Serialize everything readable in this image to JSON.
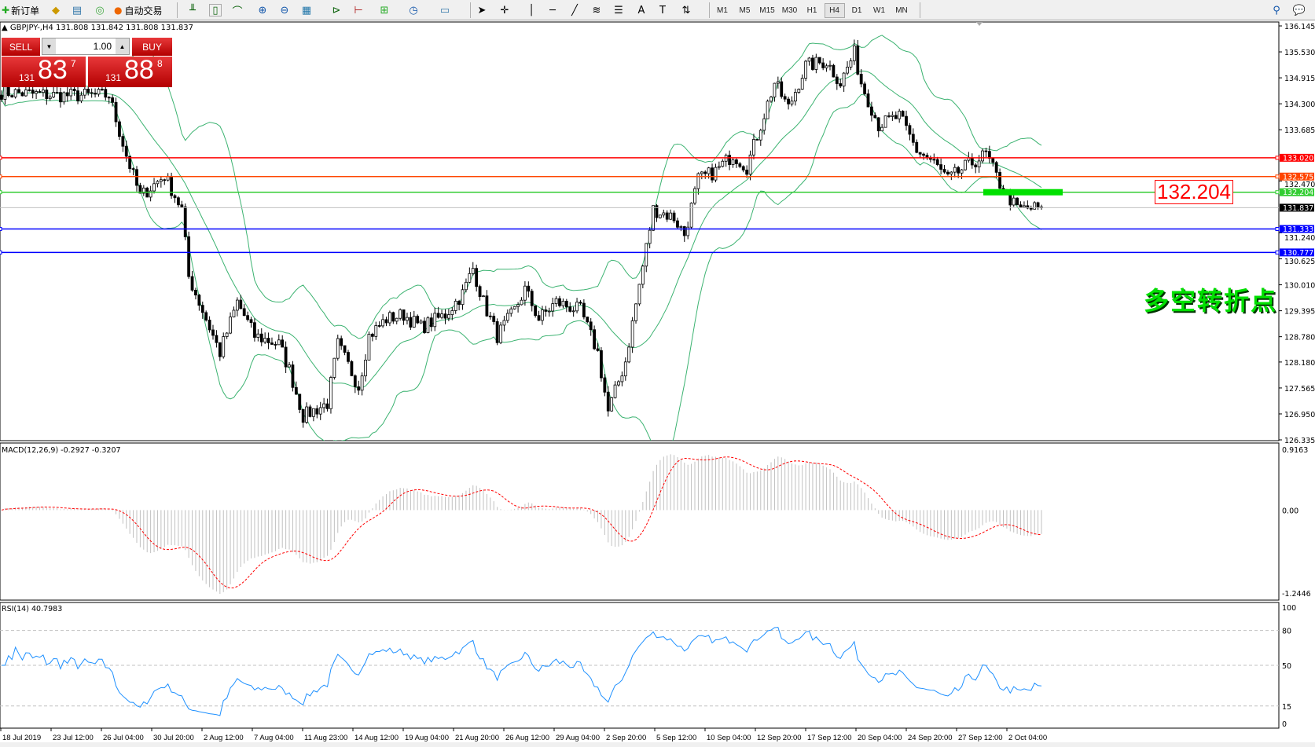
{
  "toolbar": {
    "new_order": "新订单",
    "auto_trading": "自动交易",
    "timeframes": [
      "M1",
      "M5",
      "M15",
      "M30",
      "H1",
      "H4",
      "D1",
      "W1",
      "MN"
    ],
    "selected_timeframe": "H4"
  },
  "chart": {
    "header": "GBPJPY-,H4  131.808 131.842 131.808 131.837",
    "symbol": "GBPJPY-",
    "timeframe": "H4",
    "ohlc": {
      "open": "131.808",
      "high": "131.842",
      "low": "131.808",
      "close": "131.837"
    }
  },
  "trade_panel": {
    "sell_label": "SELL",
    "buy_label": "BUY",
    "lot": "1.00",
    "sell_prefix": "131",
    "sell_big": "83",
    "sell_sup": "7",
    "buy_prefix": "131",
    "buy_big": "88",
    "buy_sup": "8"
  },
  "annotations": {
    "big_price_label": "132.204",
    "overlay_text": "多空转折点",
    "overlay_color": "#00e000"
  },
  "chart_data": {
    "type": "candlestick",
    "price_axis_ticks": [
      "136.145",
      "135.530",
      "134.915",
      "134.300",
      "133.685",
      "132.470",
      "131.240",
      "130.625",
      "130.010",
      "129.395",
      "128.780",
      "128.180",
      "127.565",
      "126.950",
      "126.335"
    ],
    "ylim": [
      126.335,
      136.145
    ],
    "time_labels": [
      "18 Jul 2019",
      "23 Jul 12:00",
      "26 Jul 04:00",
      "30 Jul 20:00",
      "2 Aug 12:00",
      "7 Aug 04:00",
      "11 Aug 23:00",
      "14 Aug 12:00",
      "19 Aug 04:00",
      "21 Aug 20:00",
      "26 Aug 12:00",
      "29 Aug 04:00",
      "2 Sep 20:00",
      "5 Sep 12:00",
      "10 Sep 04:00",
      "12 Sep 20:00",
      "17 Sep 12:00",
      "20 Sep 04:00",
      "24 Sep 20:00",
      "27 Sep 12:00",
      "2 Oct 04:00"
    ],
    "horizontal_lines": [
      {
        "price": "133.020",
        "color": "#ff0000"
      },
      {
        "price": "132.575",
        "color": "#ff4500"
      },
      {
        "price": "132.204",
        "color": "#32cd32"
      },
      {
        "price": "131.837",
        "color": "#000000",
        "current": true
      },
      {
        "price": "131.333",
        "color": "#0000ff"
      },
      {
        "price": "130.777",
        "color": "#0000ff"
      }
    ],
    "close_path": [
      [
        0,
        134.58
      ],
      [
        15,
        134.5
      ],
      [
        31,
        134.5
      ],
      [
        36,
        133.08
      ],
      [
        40,
        132.1
      ],
      [
        47,
        132.6
      ],
      [
        52,
        131.8
      ],
      [
        54,
        130.2
      ],
      [
        58,
        129.4
      ],
      [
        63,
        128.4
      ],
      [
        68,
        129.6
      ],
      [
        73,
        128.8
      ],
      [
        80,
        128.6
      ],
      [
        83,
        128.0
      ],
      [
        87,
        126.9
      ],
      [
        94,
        127.2
      ],
      [
        97,
        128.6
      ],
      [
        103,
        127.6
      ],
      [
        106,
        128.8
      ],
      [
        111,
        129.2
      ],
      [
        116,
        129.3
      ],
      [
        121,
        129.0
      ],
      [
        128,
        129.3
      ],
      [
        133,
        129.8
      ],
      [
        136,
        130.4
      ],
      [
        139,
        129.6
      ],
      [
        143,
        128.8
      ],
      [
        148,
        129.4
      ],
      [
        151,
        129.9
      ],
      [
        155,
        129.2
      ],
      [
        160,
        129.6
      ],
      [
        167,
        129.4
      ],
      [
        172,
        128.4
      ],
      [
        175,
        127.0
      ],
      [
        180,
        128.2
      ],
      [
        184,
        130.0
      ],
      [
        188,
        131.8
      ],
      [
        194,
        131.6
      ],
      [
        197,
        131.2
      ],
      [
        201,
        132.5
      ],
      [
        206,
        132.7
      ],
      [
        211,
        133.1
      ],
      [
        215,
        132.8
      ],
      [
        219,
        133.8
      ],
      [
        223,
        134.8
      ],
      [
        227,
        134.2
      ],
      [
        232,
        135.2
      ],
      [
        238,
        135.3
      ],
      [
        242,
        134.8
      ],
      [
        246,
        135.5
      ],
      [
        248,
        134.8
      ],
      [
        253,
        133.8
      ],
      [
        259,
        134.0
      ],
      [
        264,
        133.2
      ],
      [
        269,
        132.9
      ],
      [
        273,
        132.5
      ],
      [
        278,
        132.8
      ],
      [
        284,
        133.1
      ],
      [
        288,
        132.4
      ],
      [
        293,
        131.8
      ],
      [
        300,
        131.837
      ]
    ],
    "indicators": {
      "bollinger": {
        "color": "#3cb371"
      },
      "macd": {
        "label": "MACD(12,26,9) -0.2927 -0.3207",
        "ticks": [
          "0.9163",
          "0.00",
          "-1.2446"
        ],
        "ylim": [
          -1.2446,
          0.9163
        ],
        "signal_color": "#ff0000",
        "hist_color": "#c0c0c0"
      },
      "rsi": {
        "label": "RSI(14) 40.7983",
        "ticks": [
          "100",
          "80",
          "50",
          "15",
          "0"
        ],
        "levels": [
          80,
          50,
          15
        ],
        "color": "#1e90ff"
      }
    }
  }
}
